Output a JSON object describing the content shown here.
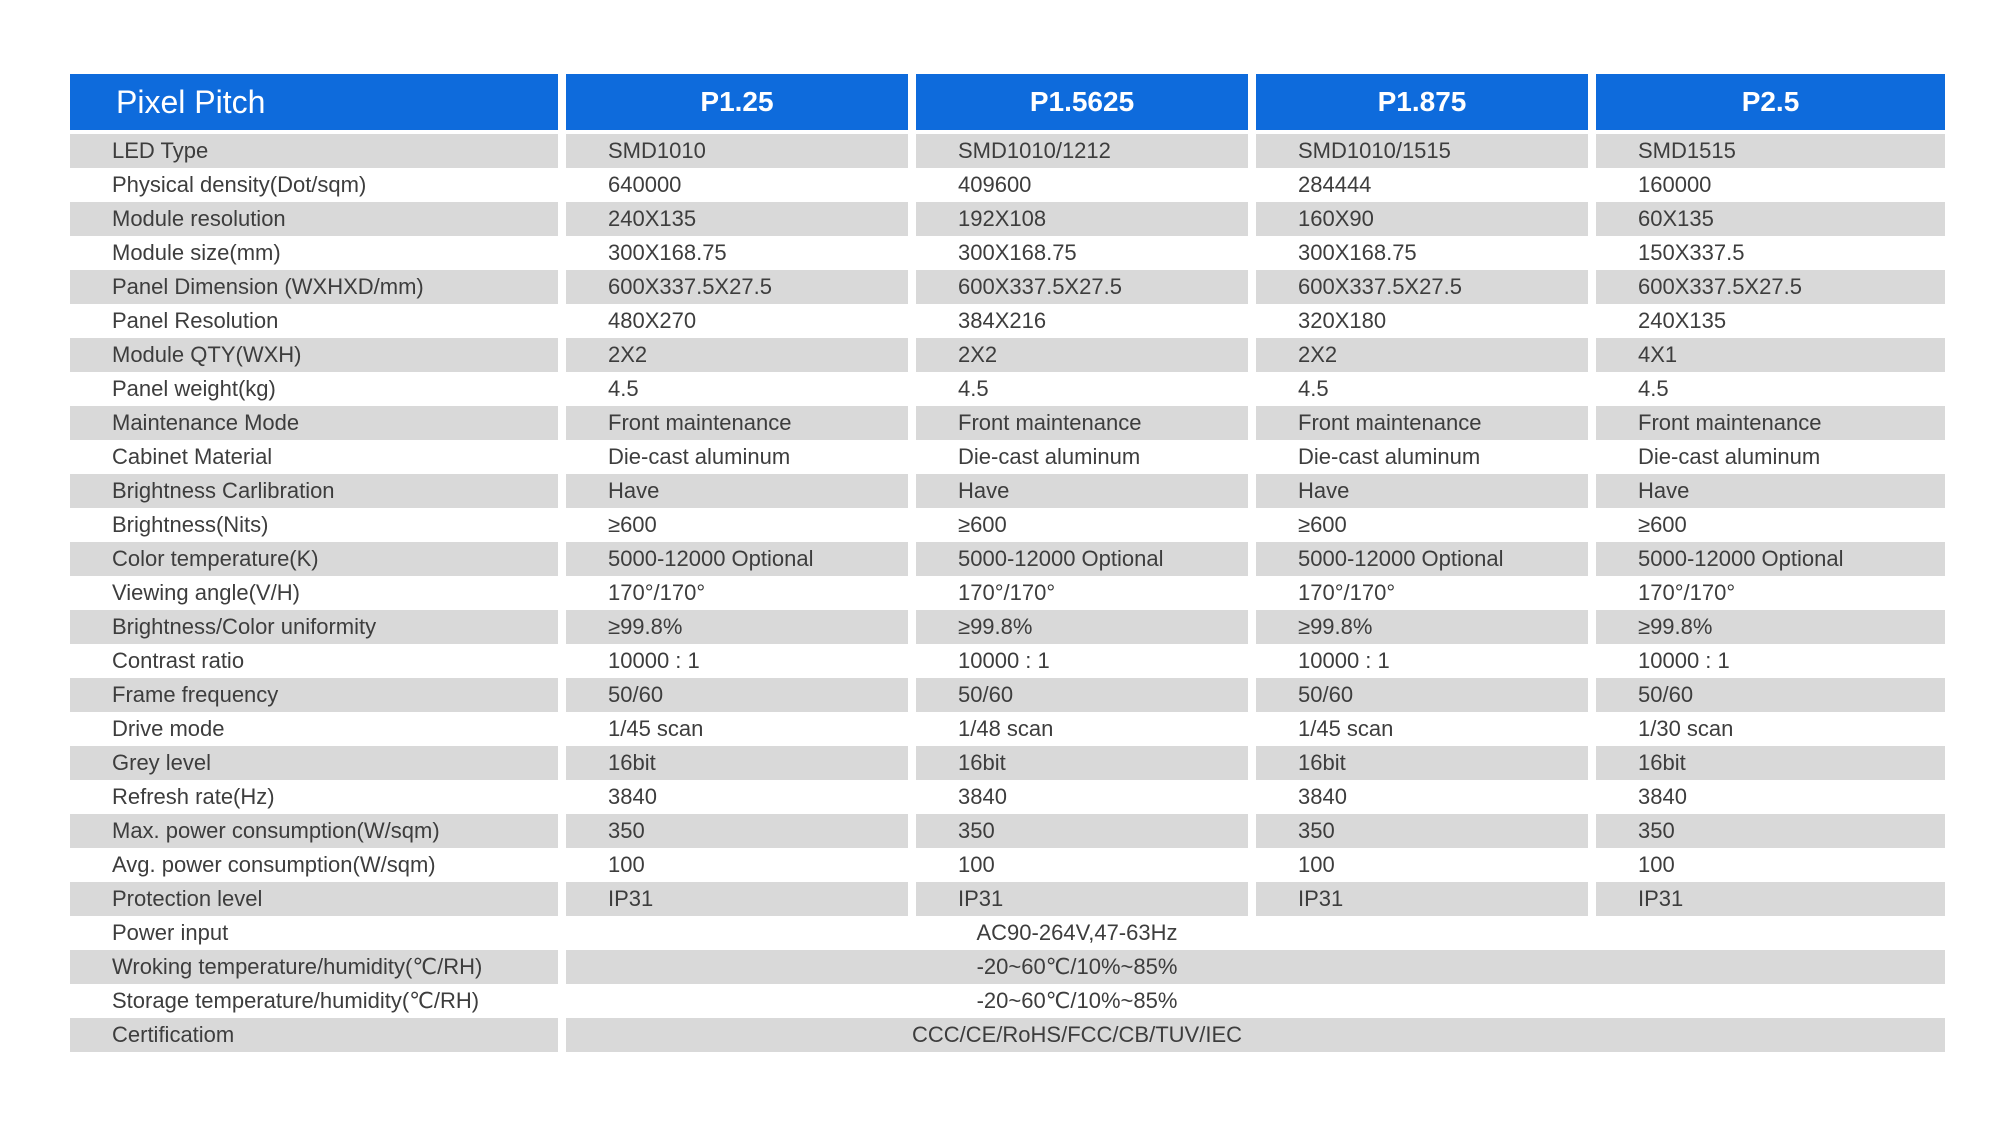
{
  "table": {
    "colors": {
      "header_bg": "#0E6BDC",
      "alt_row_bg": "#D9D9D9",
      "text": "#3D3D3D",
      "header_text": "#FFFFFF"
    },
    "header": {
      "label": "Pixel Pitch",
      "columns": [
        "P1.25",
        "P1.5625",
        "P1.875",
        "P2.5"
      ]
    },
    "rows": [
      {
        "label": "LED Type",
        "values": [
          "SMD1010",
          "SMD1010/1212",
          "SMD1010/1515",
          "SMD1515"
        ]
      },
      {
        "label": "Physical density(Dot/sqm)",
        "values": [
          "640000",
          "409600",
          "284444",
          "160000"
        ]
      },
      {
        "label": "Module resolution",
        "values": [
          "240X135",
          "192X108",
          "160X90",
          "60X135"
        ]
      },
      {
        "label": "Module size(mm)",
        "values": [
          "300X168.75",
          "300X168.75",
          "300X168.75",
          "150X337.5"
        ]
      },
      {
        "label": "Panel Dimension (WXHXD/mm)",
        "values": [
          "600X337.5X27.5",
          "600X337.5X27.5",
          "600X337.5X27.5",
          "600X337.5X27.5"
        ]
      },
      {
        "label": "Panel Resolution",
        "values": [
          "480X270",
          "384X216",
          "320X180",
          "240X135"
        ]
      },
      {
        "label": "Module QTY(WXH)",
        "values": [
          "2X2",
          "2X2",
          "2X2",
          "4X1"
        ]
      },
      {
        "label": "Panel weight(kg)",
        "values": [
          "4.5",
          "4.5",
          "4.5",
          "4.5"
        ]
      },
      {
        "label": "Maintenance Mode",
        "values": [
          "Front maintenance",
          "Front maintenance",
          "Front maintenance",
          "Front maintenance"
        ]
      },
      {
        "label": "Cabinet Material",
        "values": [
          "Die-cast aluminum",
          "Die-cast aluminum",
          "Die-cast aluminum",
          "Die-cast aluminum"
        ]
      },
      {
        "label": "Brightness Carlibration",
        "values": [
          "Have",
          "Have",
          "Have",
          "Have"
        ]
      },
      {
        "label": "Brightness(Nits)",
        "values": [
          "≥600",
          "≥600",
          "≥600",
          "≥600"
        ]
      },
      {
        "label": "Color temperature(K)",
        "values": [
          "5000-12000 Optional",
          "5000-12000 Optional",
          "5000-12000 Optional",
          "5000-12000 Optional"
        ]
      },
      {
        "label": "Viewing angle(V/H)",
        "values": [
          "170°/170°",
          "170°/170°",
          "170°/170°",
          "170°/170°"
        ]
      },
      {
        "label": "Brightness/Color uniformity",
        "values": [
          "≥99.8%",
          "≥99.8%",
          "≥99.8%",
          "≥99.8%"
        ]
      },
      {
        "label": "Contrast ratio",
        "values": [
          "10000 : 1",
          "10000 : 1",
          "10000 : 1",
          "10000 : 1"
        ]
      },
      {
        "label": "Frame frequency",
        "values": [
          "50/60",
          "50/60",
          "50/60",
          "50/60"
        ]
      },
      {
        "label": "Drive mode",
        "values": [
          "1/45 scan",
          "1/48 scan",
          "1/45 scan",
          "1/30 scan"
        ]
      },
      {
        "label": "Grey level",
        "values": [
          "16bit",
          "16bit",
          "16bit",
          "16bit"
        ]
      },
      {
        "label": "Refresh rate(Hz)",
        "values": [
          "3840",
          "3840",
          "3840",
          "3840"
        ]
      },
      {
        "label": "Max. power consumption(W/sqm)",
        "values": [
          "350",
          "350",
          "350",
          "350"
        ]
      },
      {
        "label": "Avg. power consumption(W/sqm)",
        "values": [
          "100",
          "100",
          "100",
          "100"
        ]
      },
      {
        "label": "Protection level",
        "values": [
          "IP31",
          "IP31",
          "IP31",
          "IP31"
        ]
      }
    ],
    "merged_rows": [
      {
        "label": "Power input",
        "value": "AC90-264V,47-63Hz"
      },
      {
        "label": "Wroking temperature/humidity(℃/RH)",
        "value": "-20~60℃/10%~85%"
      },
      {
        "label": "Storage temperature/humidity(℃/RH)",
        "value": "-20~60℃/10%~85%"
      },
      {
        "label": "Certificatiom",
        "value": "CCC/CE/RoHS/FCC/CB/TUV/IEC"
      }
    ]
  }
}
